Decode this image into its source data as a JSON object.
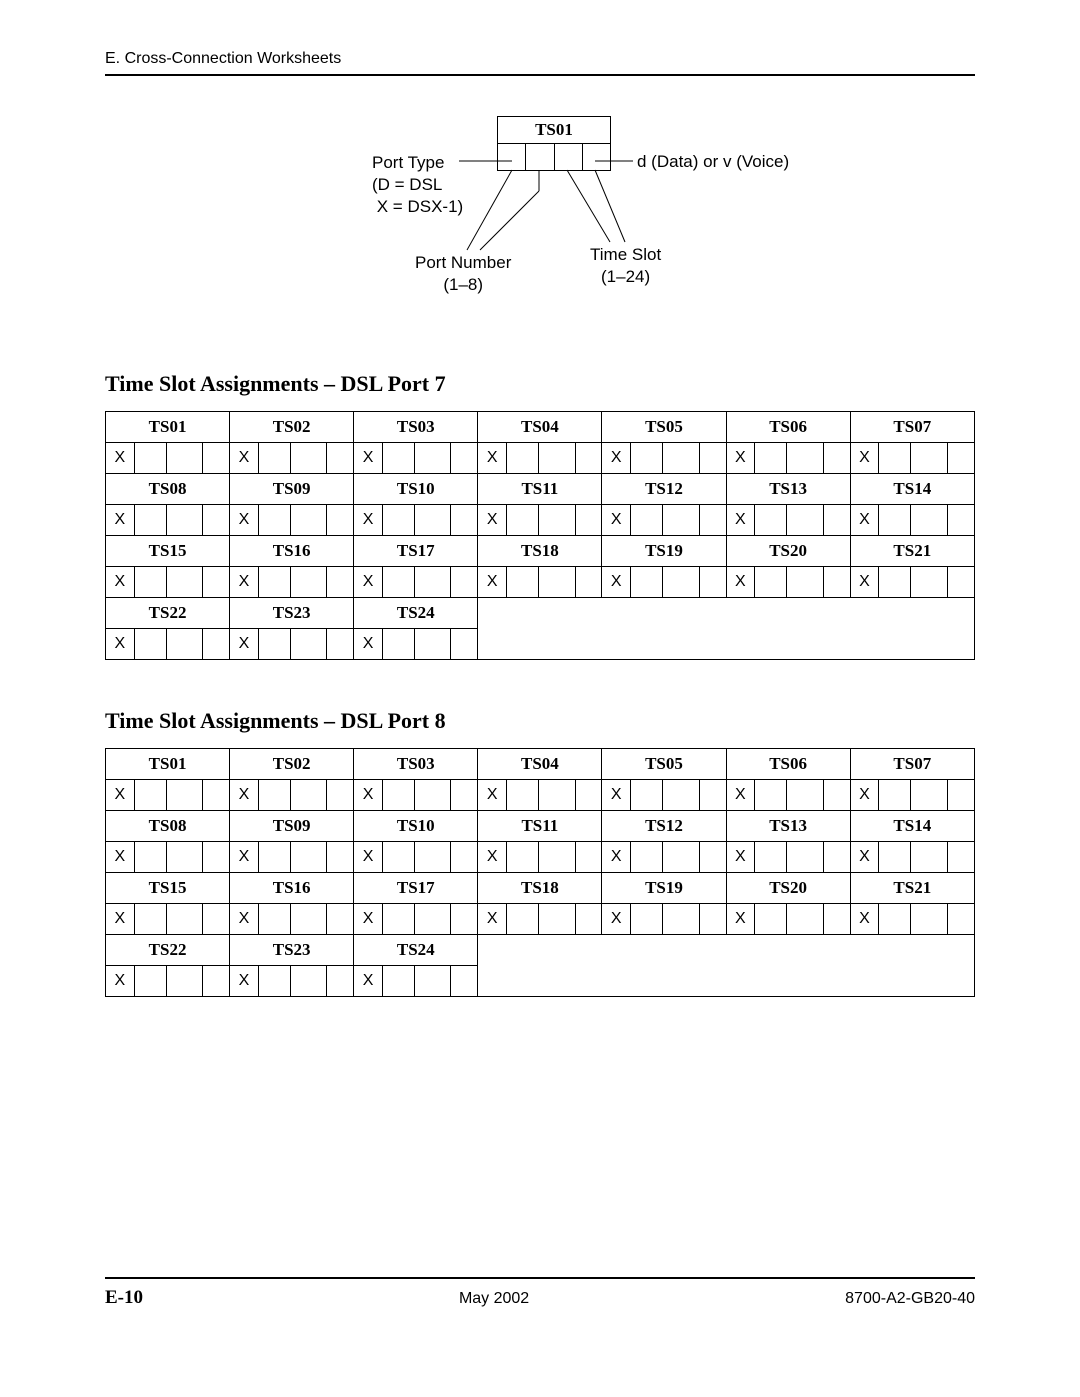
{
  "header": {
    "section": "E. Cross-Connection Worksheets"
  },
  "diagram": {
    "ts_box_label": "TS01",
    "port_type_label": "Port Type",
    "port_type_line2": "(D = DSL",
    "port_type_line3": "X = DSX-1)",
    "dv_label": "d (Data) or v (Voice)",
    "port_number_label": "Port Number",
    "port_number_range": "(1–8)",
    "time_slot_label": "Time Slot",
    "time_slot_range": "(1–24)"
  },
  "section7": {
    "title": "Time Slot Assignments – DSL Port 7",
    "headers": [
      "TS01",
      "TS02",
      "TS03",
      "TS04",
      "TS05",
      "TS06",
      "TS07",
      "TS08",
      "TS09",
      "TS10",
      "TS11",
      "TS12",
      "TS13",
      "TS14",
      "TS15",
      "TS16",
      "TS17",
      "TS18",
      "TS19",
      "TS20",
      "TS21",
      "TS22",
      "TS23",
      "TS24"
    ],
    "first_cell": "X"
  },
  "section8": {
    "title": "Time Slot Assignments – DSL Port 8",
    "headers": [
      "TS01",
      "TS02",
      "TS03",
      "TS04",
      "TS05",
      "TS06",
      "TS07",
      "TS08",
      "TS09",
      "TS10",
      "TS11",
      "TS12",
      "TS13",
      "TS14",
      "TS15",
      "TS16",
      "TS17",
      "TS18",
      "TS19",
      "TS20",
      "TS21",
      "TS22",
      "TS23",
      "TS24"
    ],
    "first_cell": "X"
  },
  "footer": {
    "page": "E-10",
    "date": "May 2002",
    "docid": "8700-A2-GB20-40"
  },
  "style": {
    "colors": {
      "text": "#000000",
      "bg": "#ffffff",
      "rule": "#000000"
    },
    "fonts": {
      "body_serif": "Times New Roman",
      "ui_sans": "Arial"
    }
  }
}
